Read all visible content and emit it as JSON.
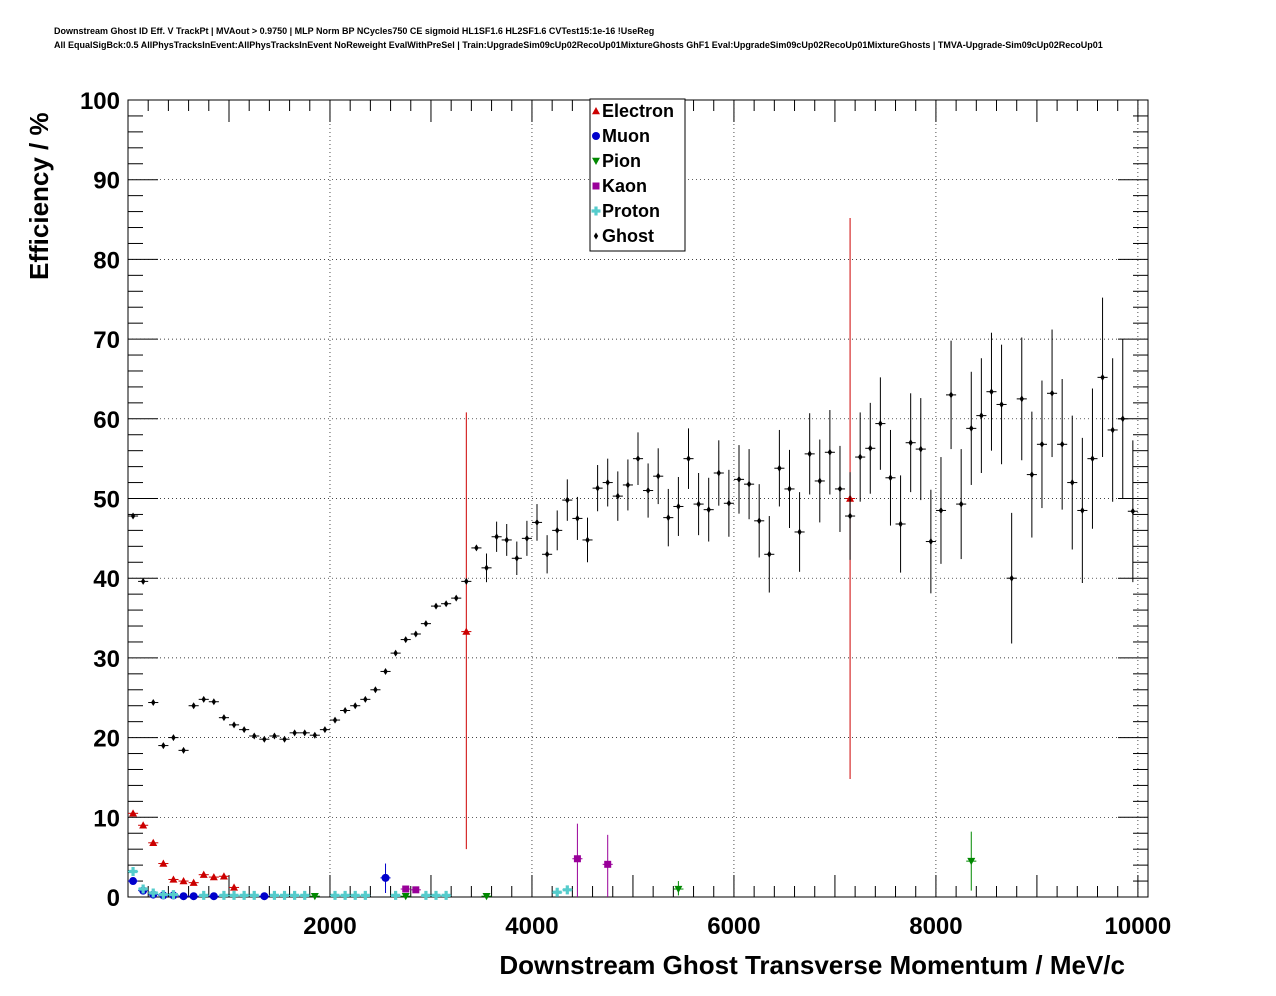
{
  "chart_data": {
    "type": "scatter",
    "title_lines": [
      "Downstream Ghost ID Eff. V TrackPt | MVAout > 0.9750 | MLP Norm BP NCycles750 CE sigmoid HL1SF1.6 HL2SF1.6 CVTest15:1e-16 !UseReg",
      "All EqualSigBck:0.5 AllPhysTracksInEvent:AllPhysTracksInEvent NoReweight EvalWithPreSel | Train:UpgradeSim09cUp02RecoUp01MixtureGhosts GhF1 Eval:UpgradeSim09cUp02RecoUp01MixtureGhosts | TMVA-Upgrade-Sim09cUp02RecoUp01"
    ],
    "xlabel": "Downstream Ghost Transverse Momentum / MeV/c",
    "ylabel": "Efficiency / %",
    "xlim": [
      0,
      10100
    ],
    "ylim": [
      0,
      100
    ],
    "xticks": [
      2000,
      4000,
      6000,
      8000,
      10000
    ],
    "yticks": [
      0,
      10,
      20,
      30,
      40,
      50,
      60,
      70,
      80,
      90,
      100
    ],
    "grid": true,
    "legend_position": "top-center",
    "series": [
      {
        "name": "Electron",
        "color": "#cc0000",
        "marker": "triangle-up",
        "points": [
          {
            "x": 50,
            "y": 10.5
          },
          {
            "x": 150,
            "y": 9.0
          },
          {
            "x": 250,
            "y": 6.8
          },
          {
            "x": 350,
            "y": 4.2
          },
          {
            "x": 450,
            "y": 2.2
          },
          {
            "x": 550,
            "y": 2.0
          },
          {
            "x": 650,
            "y": 1.8
          },
          {
            "x": 750,
            "y": 2.8
          },
          {
            "x": 850,
            "y": 2.5
          },
          {
            "x": 950,
            "y": 2.6
          },
          {
            "x": 1050,
            "y": 1.2
          },
          {
            "x": 3350,
            "y": 33.3,
            "lo": 6.0,
            "hi": 60.8
          },
          {
            "x": 7150,
            "y": 50.0,
            "lo": 14.8,
            "hi": 85.2
          }
        ]
      },
      {
        "name": "Muon",
        "color": "#0000cc",
        "marker": "circle",
        "points": [
          {
            "x": 50,
            "y": 2.0
          },
          {
            "x": 150,
            "y": 0.8
          },
          {
            "x": 250,
            "y": 0.3
          },
          {
            "x": 350,
            "y": 0.2
          },
          {
            "x": 450,
            "y": 0.2
          },
          {
            "x": 550,
            "y": 0.1
          },
          {
            "x": 650,
            "y": 0.1
          },
          {
            "x": 850,
            "y": 0.1
          },
          {
            "x": 1350,
            "y": 0.1
          },
          {
            "x": 2550,
            "y": 2.4,
            "lo": 0.5,
            "hi": 4.2
          }
        ]
      },
      {
        "name": "Pion",
        "color": "#008800",
        "marker": "triangle-down",
        "points": [
          {
            "x": 1850,
            "y": 0.1
          },
          {
            "x": 2750,
            "y": 0.1
          },
          {
            "x": 3550,
            "y": 0.1
          },
          {
            "x": 5450,
            "y": 1.0,
            "lo": 0.2,
            "hi": 2.0
          },
          {
            "x": 8350,
            "y": 4.5,
            "lo": 0.8,
            "hi": 8.2
          }
        ]
      },
      {
        "name": "Kaon",
        "color": "#990099",
        "marker": "square",
        "points": [
          {
            "x": 2750,
            "y": 1.0
          },
          {
            "x": 2850,
            "y": 0.9
          },
          {
            "x": 4450,
            "y": 4.8,
            "lo": 0.0,
            "hi": 9.2
          },
          {
            "x": 4750,
            "y": 4.1,
            "lo": 0.0,
            "hi": 7.8
          }
        ]
      },
      {
        "name": "Proton",
        "color": "#55cccc",
        "marker": "cross",
        "points": [
          {
            "x": 50,
            "y": 3.2
          },
          {
            "x": 150,
            "y": 1.0
          },
          {
            "x": 250,
            "y": 0.5
          },
          {
            "x": 350,
            "y": 0.3
          },
          {
            "x": 450,
            "y": 0.3
          },
          {
            "x": 750,
            "y": 0.2
          },
          {
            "x": 950,
            "y": 0.2
          },
          {
            "x": 1050,
            "y": 0.2
          },
          {
            "x": 1150,
            "y": 0.2
          },
          {
            "x": 1250,
            "y": 0.2
          },
          {
            "x": 1450,
            "y": 0.2
          },
          {
            "x": 1550,
            "y": 0.2
          },
          {
            "x": 1650,
            "y": 0.2
          },
          {
            "x": 1750,
            "y": 0.2
          },
          {
            "x": 2050,
            "y": 0.2
          },
          {
            "x": 2150,
            "y": 0.2
          },
          {
            "x": 2250,
            "y": 0.2
          },
          {
            "x": 2350,
            "y": 0.2
          },
          {
            "x": 2650,
            "y": 0.2
          },
          {
            "x": 2950,
            "y": 0.2
          },
          {
            "x": 3050,
            "y": 0.2
          },
          {
            "x": 3150,
            "y": 0.2
          },
          {
            "x": 4250,
            "y": 0.6
          },
          {
            "x": 4350,
            "y": 0.9
          }
        ]
      },
      {
        "name": "Ghost",
        "color": "#000000",
        "marker": "diamond",
        "points": [
          {
            "x": 50,
            "y": 47.8
          },
          {
            "x": 150,
            "y": 39.6
          },
          {
            "x": 250,
            "y": 24.4
          },
          {
            "x": 350,
            "y": 19.0
          },
          {
            "x": 450,
            "y": 20.0
          },
          {
            "x": 550,
            "y": 18.4
          },
          {
            "x": 650,
            "y": 24.0
          },
          {
            "x": 750,
            "y": 24.8
          },
          {
            "x": 850,
            "y": 24.5
          },
          {
            "x": 950,
            "y": 22.5
          },
          {
            "x": 1050,
            "y": 21.6
          },
          {
            "x": 1150,
            "y": 21.0
          },
          {
            "x": 1250,
            "y": 20.2
          },
          {
            "x": 1350,
            "y": 19.8
          },
          {
            "x": 1450,
            "y": 20.2
          },
          {
            "x": 1550,
            "y": 19.8
          },
          {
            "x": 1650,
            "y": 20.6
          },
          {
            "x": 1750,
            "y": 20.6
          },
          {
            "x": 1850,
            "y": 20.3
          },
          {
            "x": 1950,
            "y": 21.0
          },
          {
            "x": 2050,
            "y": 22.2
          },
          {
            "x": 2150,
            "y": 23.4
          },
          {
            "x": 2250,
            "y": 24.0
          },
          {
            "x": 2350,
            "y": 24.8
          },
          {
            "x": 2450,
            "y": 26.0
          },
          {
            "x": 2550,
            "y": 28.3
          },
          {
            "x": 2650,
            "y": 30.6
          },
          {
            "x": 2750,
            "y": 32.3
          },
          {
            "x": 2850,
            "y": 33.0
          },
          {
            "x": 2950,
            "y": 34.3
          },
          {
            "x": 3050,
            "y": 36.5
          },
          {
            "x": 3150,
            "y": 36.8
          },
          {
            "x": 3250,
            "y": 37.5
          },
          {
            "x": 3350,
            "y": 39.6
          },
          {
            "x": 3450,
            "y": 43.8
          },
          {
            "x": 3550,
            "y": 41.3,
            "lo": 39.5,
            "hi": 43.1
          },
          {
            "x": 3650,
            "y": 45.2,
            "lo": 43.3,
            "hi": 47.1
          },
          {
            "x": 3750,
            "y": 44.8,
            "lo": 42.8,
            "hi": 46.8
          },
          {
            "x": 3850,
            "y": 42.5,
            "lo": 40.4,
            "hi": 44.6
          },
          {
            "x": 3950,
            "y": 45.0,
            "lo": 42.8,
            "hi": 47.2
          },
          {
            "x": 4050,
            "y": 47.0,
            "lo": 44.7,
            "hi": 49.3
          },
          {
            "x": 4150,
            "y": 43.0,
            "lo": 40.6,
            "hi": 45.4
          },
          {
            "x": 4250,
            "y": 46.0,
            "lo": 43.5,
            "hi": 48.5
          },
          {
            "x": 4350,
            "y": 49.8,
            "lo": 47.2,
            "hi": 52.4
          },
          {
            "x": 4450,
            "y": 47.5,
            "lo": 44.8,
            "hi": 50.2
          },
          {
            "x": 4550,
            "y": 44.8,
            "lo": 42.0,
            "hi": 47.6
          },
          {
            "x": 4650,
            "y": 51.3,
            "lo": 48.4,
            "hi": 54.2
          },
          {
            "x": 4750,
            "y": 52.0,
            "lo": 49.0,
            "hi": 55.0
          },
          {
            "x": 4850,
            "y": 50.3,
            "lo": 47.2,
            "hi": 53.4
          },
          {
            "x": 4950,
            "y": 51.7,
            "lo": 48.5,
            "hi": 54.9
          },
          {
            "x": 5050,
            "y": 55.0,
            "lo": 51.7,
            "hi": 58.3
          },
          {
            "x": 5150,
            "y": 51.0,
            "lo": 47.6,
            "hi": 54.4
          },
          {
            "x": 5250,
            "y": 52.8,
            "lo": 49.3,
            "hi": 56.3
          },
          {
            "x": 5350,
            "y": 47.6,
            "lo": 44.0,
            "hi": 51.2
          },
          {
            "x": 5450,
            "y": 49.0,
            "lo": 45.3,
            "hi": 52.7
          },
          {
            "x": 5550,
            "y": 55.0,
            "lo": 51.2,
            "hi": 58.8
          },
          {
            "x": 5650,
            "y": 49.3,
            "lo": 45.4,
            "hi": 53.2
          },
          {
            "x": 5750,
            "y": 48.6,
            "lo": 44.6,
            "hi": 52.6
          },
          {
            "x": 5850,
            "y": 53.2,
            "lo": 49.1,
            "hi": 57.3
          },
          {
            "x": 5950,
            "y": 49.4,
            "lo": 45.2,
            "hi": 53.6
          },
          {
            "x": 6050,
            "y": 52.4,
            "lo": 48.1,
            "hi": 56.7
          },
          {
            "x": 6150,
            "y": 51.8,
            "lo": 47.4,
            "hi": 56.2
          },
          {
            "x": 6250,
            "y": 47.2,
            "lo": 42.6,
            "hi": 51.8
          },
          {
            "x": 6350,
            "y": 43.0,
            "lo": 38.2,
            "hi": 47.8
          },
          {
            "x": 6450,
            "y": 53.8,
            "lo": 49.0,
            "hi": 58.6
          },
          {
            "x": 6550,
            "y": 51.2,
            "lo": 46.3,
            "hi": 56.1
          },
          {
            "x": 6650,
            "y": 45.8,
            "lo": 40.8,
            "hi": 50.8
          },
          {
            "x": 6750,
            "y": 55.6,
            "lo": 50.5,
            "hi": 60.7
          },
          {
            "x": 6850,
            "y": 52.2,
            "lo": 47.0,
            "hi": 57.4
          },
          {
            "x": 6950,
            "y": 55.8,
            "lo": 50.5,
            "hi": 61.1
          },
          {
            "x": 7050,
            "y": 51.2,
            "lo": 45.8,
            "hi": 56.6
          },
          {
            "x": 7150,
            "y": 47.8,
            "lo": 42.3,
            "hi": 53.3
          },
          {
            "x": 7250,
            "y": 55.2,
            "lo": 49.6,
            "hi": 60.8
          },
          {
            "x": 7350,
            "y": 56.3,
            "lo": 50.6,
            "hi": 62.0
          },
          {
            "x": 7450,
            "y": 59.4,
            "lo": 53.6,
            "hi": 65.2
          },
          {
            "x": 7550,
            "y": 52.6,
            "lo": 46.6,
            "hi": 58.6
          },
          {
            "x": 7650,
            "y": 46.8,
            "lo": 40.7,
            "hi": 52.9
          },
          {
            "x": 7750,
            "y": 57.0,
            "lo": 50.8,
            "hi": 63.2
          },
          {
            "x": 7850,
            "y": 56.2,
            "lo": 49.8,
            "hi": 62.6
          },
          {
            "x": 7950,
            "y": 44.6,
            "lo": 38.1,
            "hi": 51.1
          },
          {
            "x": 8050,
            "y": 48.5,
            "lo": 41.8,
            "hi": 55.2
          },
          {
            "x": 8150,
            "y": 63.0,
            "lo": 56.2,
            "hi": 69.8
          },
          {
            "x": 8250,
            "y": 49.3,
            "lo": 42.4,
            "hi": 56.2
          },
          {
            "x": 8350,
            "y": 58.8,
            "lo": 51.7,
            "hi": 65.9
          },
          {
            "x": 8450,
            "y": 60.4,
            "lo": 53.2,
            "hi": 67.6
          },
          {
            "x": 8550,
            "y": 63.4,
            "lo": 56.0,
            "hi": 70.8
          },
          {
            "x": 8650,
            "y": 61.8,
            "lo": 54.3,
            "hi": 69.3
          },
          {
            "x": 8750,
            "y": 40.0,
            "lo": 31.8,
            "hi": 48.2
          },
          {
            "x": 8850,
            "y": 62.5,
            "lo": 54.8,
            "hi": 70.2
          },
          {
            "x": 8950,
            "y": 53.0,
            "lo": 45.1,
            "hi": 60.9
          },
          {
            "x": 9050,
            "y": 56.8,
            "lo": 48.8,
            "hi": 64.8
          },
          {
            "x": 9150,
            "y": 63.2,
            "lo": 55.2,
            "hi": 71.2
          },
          {
            "x": 9250,
            "y": 56.8,
            "lo": 48.6,
            "hi": 65.0
          },
          {
            "x": 9350,
            "y": 52.0,
            "lo": 43.6,
            "hi": 60.4
          },
          {
            "x": 9450,
            "y": 48.5,
            "lo": 39.4,
            "hi": 57.6
          },
          {
            "x": 9550,
            "y": 55.0,
            "lo": 46.2,
            "hi": 63.8
          },
          {
            "x": 9650,
            "y": 65.2,
            "lo": 55.2,
            "hi": 75.2
          },
          {
            "x": 9750,
            "y": 58.6,
            "lo": 49.6,
            "hi": 67.6
          },
          {
            "x": 9850,
            "y": 60.0,
            "lo": 50.0,
            "hi": 70.0
          },
          {
            "x": 9950,
            "y": 48.4,
            "lo": 39.5,
            "hi": 57.3
          }
        ]
      }
    ]
  }
}
